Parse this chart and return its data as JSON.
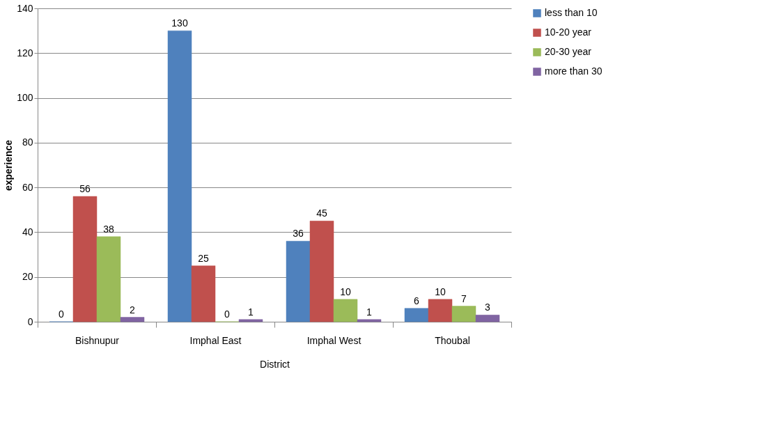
{
  "chart_data": {
    "type": "bar",
    "xlabel": "District",
    "ylabel": "experience",
    "categories": [
      "Bishnupur",
      "Imphal East",
      "Imphal West",
      "Thoubal"
    ],
    "series": [
      {
        "name": "less than 10",
        "color": "#4f81bd",
        "values": [
          0,
          130,
          36,
          6
        ]
      },
      {
        "name": "10-20 year",
        "color": "#c0504d",
        "values": [
          56,
          25,
          45,
          10
        ]
      },
      {
        "name": "20-30 year",
        "color": "#9bbb59",
        "values": [
          38,
          0,
          10,
          7
        ]
      },
      {
        "name": "more than 30",
        "color": "#8064a2",
        "values": [
          2,
          1,
          1,
          3
        ]
      }
    ],
    "ylim": [
      0,
      140
    ],
    "yticks": [
      0,
      20,
      40,
      60,
      80,
      100,
      120,
      140
    ],
    "grid": "y",
    "legend": "right",
    "data_labels": true
  }
}
